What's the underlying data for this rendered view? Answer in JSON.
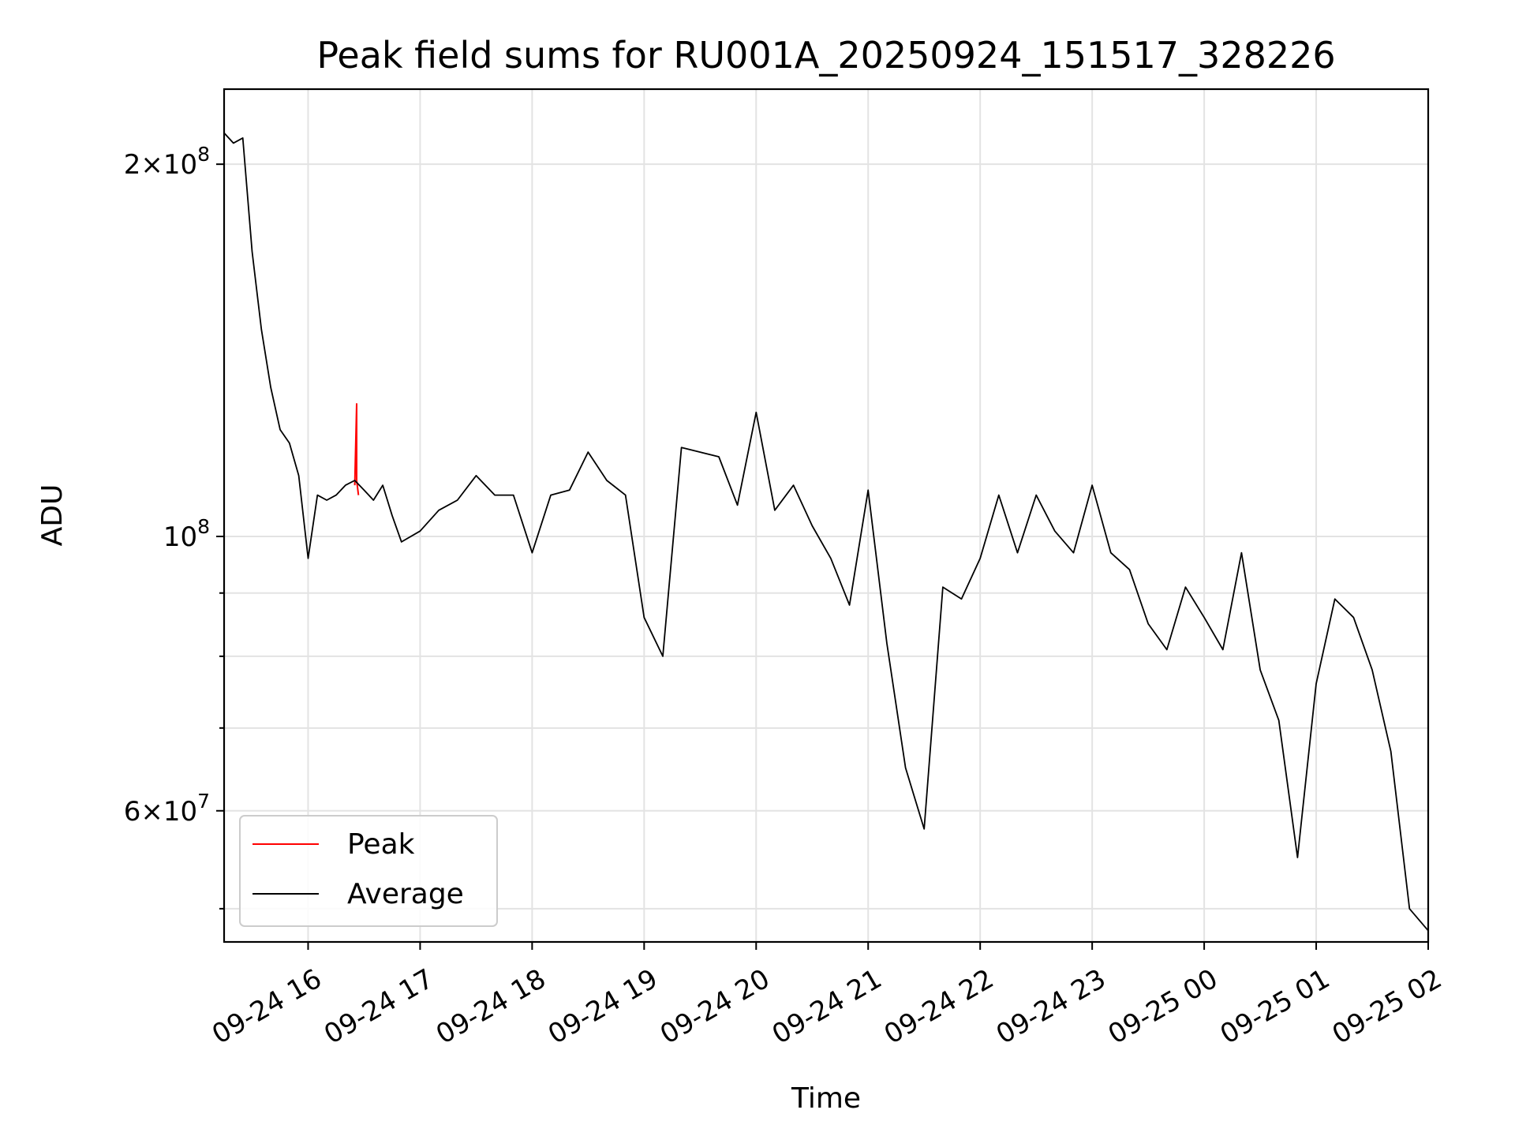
{
  "chart_data": {
    "type": "line",
    "title": "Peak field sums for RU001A_20250924_151517_328226",
    "xlabel": "Time",
    "ylabel": "ADU",
    "yscale": "log",
    "grid": true,
    "legend_position": "lower-left",
    "xlim": [
      "2025-09-24 15:15",
      "2025-09-25 02:00"
    ],
    "ylim": [
      47000000,
      230000000
    ],
    "x_ticks": [
      "09-24 16",
      "09-24 17",
      "09-24 18",
      "09-24 19",
      "09-24 20",
      "09-24 21",
      "09-24 22",
      "09-24 23",
      "09-25 00",
      "09-25 01",
      "09-25 02"
    ],
    "y_tick_labels": [
      {
        "value": 200000000,
        "base": "2",
        "exp": "8",
        "with_mult": true
      },
      {
        "value": 100000000,
        "base": "",
        "exp": "8",
        "with_mult": false
      },
      {
        "value": 60000000,
        "base": "6",
        "exp": "7",
        "with_mult": true
      }
    ],
    "y_minor_ticks": [
      50000000,
      70000000,
      80000000,
      90000000
    ],
    "series": [
      {
        "name": "Peak",
        "color": "#ff0000",
        "x": [
          "2025-09-24 16:25",
          "2025-09-24 16:26",
          "2025-09-24 16:26",
          "2025-09-24 16:27"
        ],
        "y": [
          110000000,
          128000000,
          111000000,
          108000000
        ]
      },
      {
        "name": "Average",
        "color": "#000000",
        "x": [
          "2025-09-24 15:15",
          "2025-09-24 15:20",
          "2025-09-24 15:25",
          "2025-09-24 15:30",
          "2025-09-24 15:35",
          "2025-09-24 15:40",
          "2025-09-24 15:45",
          "2025-09-24 15:50",
          "2025-09-24 15:55",
          "2025-09-24 16:00",
          "2025-09-24 16:05",
          "2025-09-24 16:10",
          "2025-09-24 16:15",
          "2025-09-24 16:20",
          "2025-09-24 16:25",
          "2025-09-24 16:30",
          "2025-09-24 16:35",
          "2025-09-24 16:40",
          "2025-09-24 16:45",
          "2025-09-24 16:50",
          "2025-09-24 17:00",
          "2025-09-24 17:10",
          "2025-09-24 17:20",
          "2025-09-24 17:30",
          "2025-09-24 17:40",
          "2025-09-24 17:50",
          "2025-09-24 18:00",
          "2025-09-24 18:10",
          "2025-09-24 18:20",
          "2025-09-24 18:30",
          "2025-09-24 18:40",
          "2025-09-24 18:50",
          "2025-09-24 19:00",
          "2025-09-24 19:10",
          "2025-09-24 19:20",
          "2025-09-24 19:30",
          "2025-09-24 19:40",
          "2025-09-24 19:50",
          "2025-09-24 20:00",
          "2025-09-24 20:10",
          "2025-09-24 20:20",
          "2025-09-24 20:30",
          "2025-09-24 20:40",
          "2025-09-24 20:50",
          "2025-09-24 21:00",
          "2025-09-24 21:10",
          "2025-09-24 21:20",
          "2025-09-24 21:30",
          "2025-09-24 21:40",
          "2025-09-24 21:50",
          "2025-09-24 22:00",
          "2025-09-24 22:10",
          "2025-09-24 22:20",
          "2025-09-24 22:30",
          "2025-09-24 22:40",
          "2025-09-24 22:50",
          "2025-09-24 23:00",
          "2025-09-24 23:10",
          "2025-09-24 23:20",
          "2025-09-24 23:30",
          "2025-09-24 23:40",
          "2025-09-24 23:50",
          "2025-09-25 00:00",
          "2025-09-25 00:10",
          "2025-09-25 00:20",
          "2025-09-25 00:30",
          "2025-09-25 00:40",
          "2025-09-25 00:50",
          "2025-09-25 01:00",
          "2025-09-25 01:10",
          "2025-09-25 01:20",
          "2025-09-25 01:30",
          "2025-09-25 01:40",
          "2025-09-25 01:50",
          "2025-09-25 02:00"
        ],
        "y": [
          212000000,
          208000000,
          210000000,
          170000000,
          147000000,
          132000000,
          122000000,
          119000000,
          112000000,
          96000000,
          108000000,
          107000000,
          108000000,
          110000000,
          111000000,
          109000000,
          107000000,
          110000000,
          104000000,
          99000000,
          101000000,
          105000000,
          107000000,
          112000000,
          108000000,
          108000000,
          97000000,
          108000000,
          109000000,
          117000000,
          111000000,
          108000000,
          86000000,
          80000000,
          118000000,
          117000000,
          116000000,
          106000000,
          126000000,
          105000000,
          110000000,
          102000000,
          96000000,
          88000000,
          109000000,
          82000000,
          65000000,
          58000000,
          91000000,
          89000000,
          96000000,
          108000000,
          97000000,
          108000000,
          101000000,
          97000000,
          110000000,
          97000000,
          94000000,
          85000000,
          81000000,
          91000000,
          86000000,
          81000000,
          97000000,
          78000000,
          71000000,
          55000000,
          76000000,
          89000000,
          86000000,
          78000000,
          67000000,
          50000000,
          48000000
        ]
      }
    ]
  }
}
